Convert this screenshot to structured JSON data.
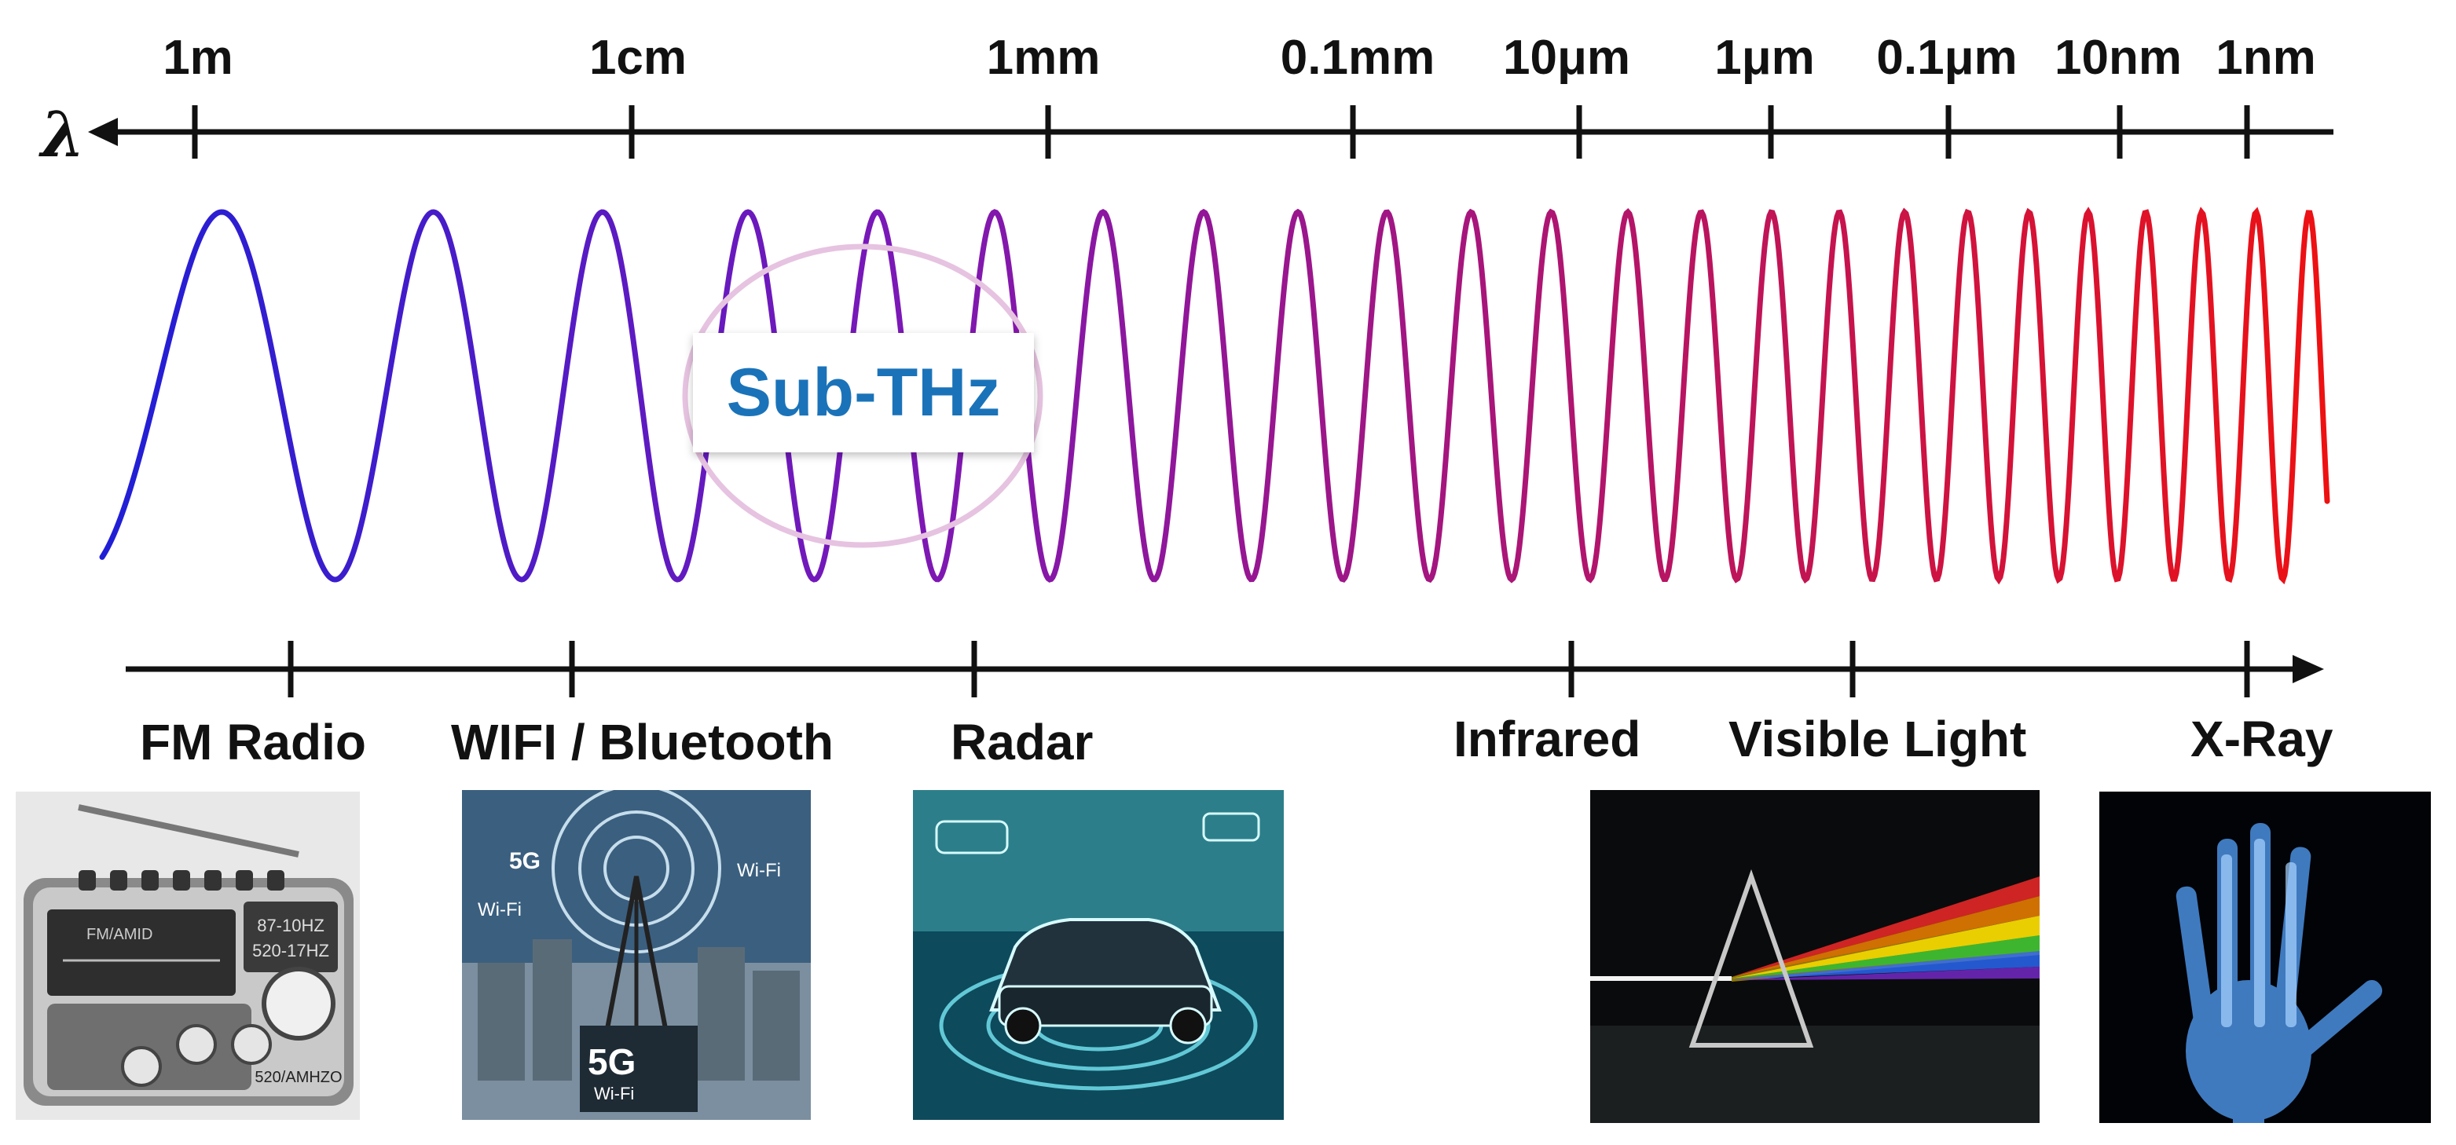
{
  "wavelength_axis": {
    "symbol": "λ",
    "ticks": [
      "1m",
      "1cm",
      "1mm",
      "0.1mm",
      "10μm",
      "1μm",
      "0.1μm",
      "10nm",
      "1nm"
    ]
  },
  "highlight": {
    "label": "Sub-THz"
  },
  "application_axis": {
    "ticks": [
      "FM Radio",
      "WIFI / Bluetooth",
      "Radar",
      "Infrared",
      "Visible Light",
      "X-Ray"
    ]
  },
  "images": {
    "radio": {
      "icon": "fm-radio-image",
      "display_line1": "87-10HZ",
      "display_line2": "520-17HZ",
      "brand": "FM/AMID",
      "model": "520/AMHZO"
    },
    "wifi": {
      "icon": "5g-tower-image",
      "tags": [
        "5G",
        "Wi-Fi",
        "Wi-Fi",
        "5G",
        "Wi-Fi"
      ]
    },
    "radar": {
      "icon": "radar-car-image"
    },
    "prism": {
      "icon": "prism-image"
    },
    "xray": {
      "icon": "xray-hand-image"
    }
  },
  "colors": {
    "wave_start": "#1f1fd6",
    "wave_end": "#ee1111",
    "highlight_text": "#1a73b9",
    "highlight_ring": "#e6c3e0"
  }
}
